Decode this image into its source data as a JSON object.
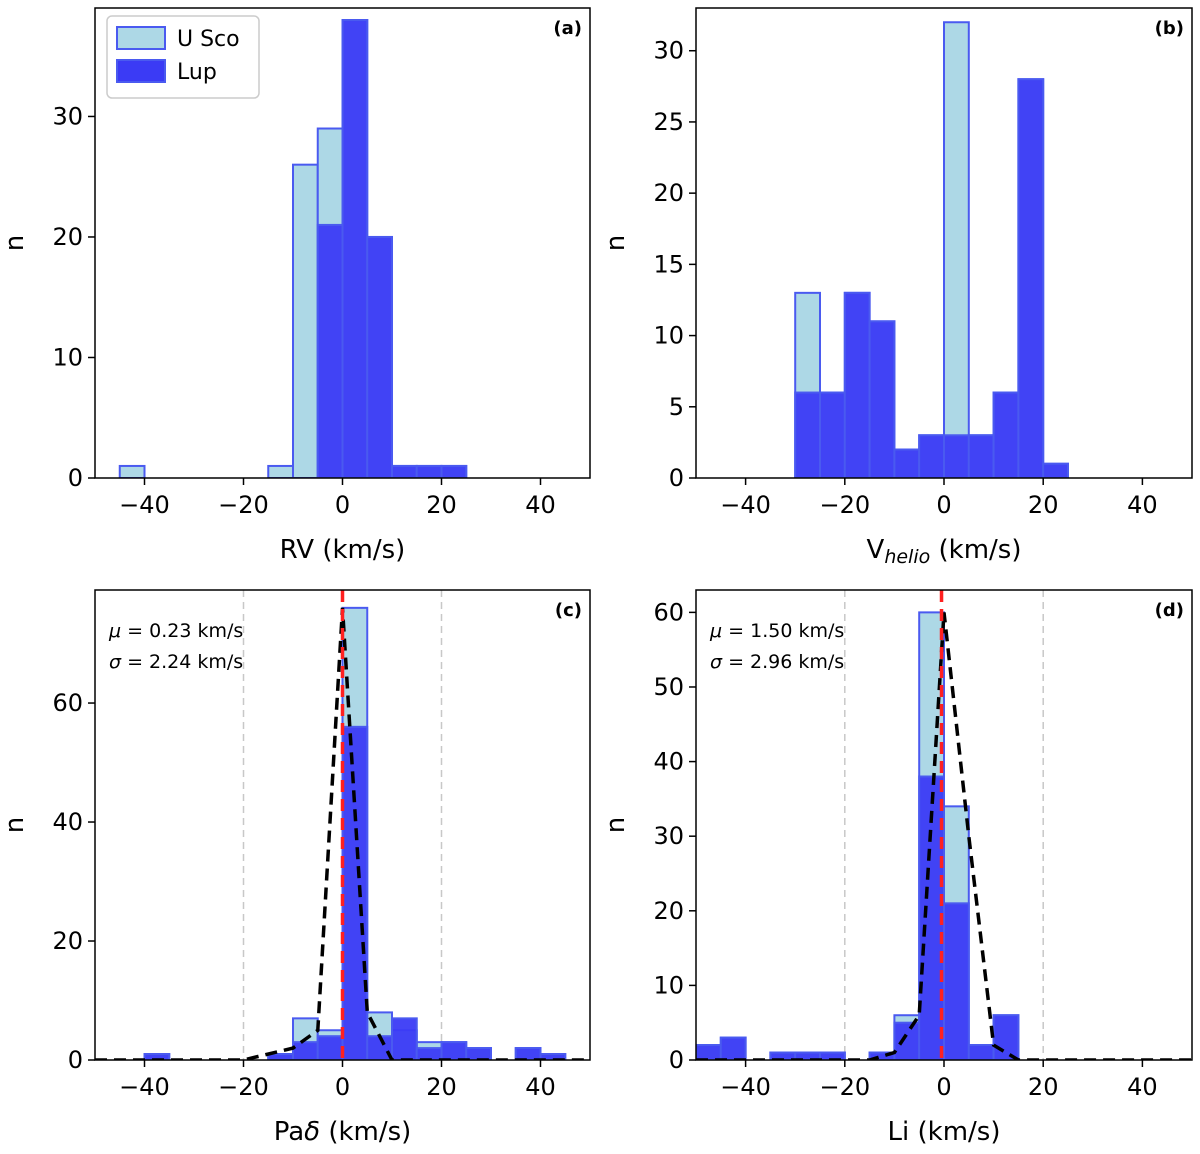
{
  "colors": {
    "usco_fill": "#add8e6",
    "lup_fill": "#3b3bf5",
    "edge": "#4a5af0",
    "fit_line": "#000000",
    "zero_line": "#ff2020",
    "grid_dash": "#c8c8c8"
  },
  "legend": {
    "usco": "U Sco",
    "lup": "Lup"
  },
  "chart_data": [
    {
      "id": "a",
      "type": "bar",
      "tag": "(a)",
      "xlabel": "RV (km/s)",
      "xlabel_sub": "",
      "ylabel": "n",
      "xlim": [
        -50,
        50
      ],
      "ylim": [
        0,
        39
      ],
      "xticks": [
        -40,
        -20,
        0,
        20,
        40
      ],
      "xtick_labels": [
        "−40",
        "−20",
        "0",
        "20",
        "40"
      ],
      "yticks": [
        0,
        10,
        20,
        30
      ],
      "ytick_labels": [
        "0",
        "10",
        "20",
        "30"
      ],
      "bin_width": 5,
      "bins": [
        -45,
        -15,
        -10,
        -5,
        0,
        5,
        10,
        15,
        20
      ],
      "usco": [
        1,
        1,
        26,
        29,
        38,
        20,
        1,
        1,
        1
      ],
      "lup": [
        0,
        0,
        0,
        21,
        38,
        20,
        1,
        1,
        1
      ],
      "legend": true
    },
    {
      "id": "b",
      "type": "bar",
      "tag": "(b)",
      "xlabel": "V",
      "xlabel_sub": "helio",
      "xlabel_tail": " (km/s)",
      "ylabel": "n",
      "xlim": [
        -50,
        50
      ],
      "ylim": [
        0,
        33
      ],
      "xticks": [
        -40,
        -20,
        0,
        20,
        40
      ],
      "xtick_labels": [
        "−40",
        "−20",
        "0",
        "20",
        "40"
      ],
      "yticks": [
        0,
        5,
        10,
        15,
        20,
        25,
        30
      ],
      "ytick_labels": [
        "0",
        "5",
        "10",
        "15",
        "20",
        "25",
        "30"
      ],
      "bin_width": 5,
      "bins": [
        -30,
        -25,
        -20,
        -15,
        -10,
        -5,
        0,
        5,
        10,
        15,
        20
      ],
      "usco": [
        13,
        6,
        13,
        11,
        2,
        3,
        32,
        3,
        6,
        28,
        1
      ],
      "lup": [
        6,
        6,
        13,
        11,
        2,
        3,
        3,
        3,
        6,
        28,
        1
      ],
      "legend": false
    },
    {
      "id": "c",
      "type": "bar",
      "tag": "(c)",
      "xlabel": "Pa",
      "xlabel_greek": "δ",
      "xlabel_tail": " (km/s)",
      "ylabel": "n",
      "xlim": [
        -50,
        50
      ],
      "ylim": [
        0,
        79
      ],
      "xticks": [
        -40,
        -20,
        0,
        20,
        40
      ],
      "xtick_labels": [
        "−40",
        "−20",
        "0",
        "20",
        "40"
      ],
      "yticks": [
        0,
        20,
        40,
        60
      ],
      "ytick_labels": [
        "0",
        "20",
        "40",
        "60"
      ],
      "bin_width": 5,
      "bins": [
        -40,
        -20,
        -15,
        -10,
        -5,
        0,
        5,
        10,
        15,
        20,
        25,
        35,
        40
      ],
      "usco": [
        1,
        0,
        1,
        7,
        5,
        76,
        8,
        5,
        3,
        3,
        2,
        2,
        1
      ],
      "lup": [
        1,
        0,
        1,
        3,
        4,
        56,
        4,
        7,
        2,
        3,
        2,
        2,
        1
      ],
      "mu_text": "= 0.23 km/s",
      "sigma_text": "= 2.24 km/s",
      "fit": {
        "x": [
          -50,
          -20,
          -10,
          -5,
          0,
          5,
          10,
          20,
          50
        ],
        "y": [
          0,
          0,
          2,
          5,
          76,
          8,
          0,
          0,
          0
        ]
      },
      "vlines": [
        -20,
        20
      ],
      "zero_line": 0,
      "legend": false
    },
    {
      "id": "d",
      "type": "bar",
      "tag": "(d)",
      "xlabel": "Li (km/s)",
      "xlabel_sub": "",
      "ylabel": "n",
      "xlim": [
        -50,
        50
      ],
      "ylim": [
        0,
        63
      ],
      "xticks": [
        -40,
        -20,
        0,
        20,
        40
      ],
      "xtick_labels": [
        "−40",
        "−20",
        "0",
        "20",
        "40"
      ],
      "yticks": [
        0,
        10,
        20,
        30,
        40,
        50,
        60
      ],
      "ytick_labels": [
        "0",
        "10",
        "20",
        "30",
        "40",
        "50",
        "60"
      ],
      "bin_width": 5,
      "bins": [
        -50,
        -45,
        -35,
        -30,
        -25,
        -15,
        -10,
        -5,
        0,
        5,
        10
      ],
      "usco": [
        2,
        3,
        1,
        1,
        1,
        1,
        6,
        60,
        34,
        2,
        6
      ],
      "lup": [
        2,
        3,
        1,
        1,
        1,
        1,
        5,
        38,
        21,
        2,
        6
      ],
      "mu_text": "= 1.50 km/s",
      "sigma_text": "= 2.96 km/s",
      "fit": {
        "x": [
          -50,
          -15,
          -10,
          -5,
          0,
          5,
          10,
          15,
          50
        ],
        "y": [
          0,
          0,
          1,
          6,
          60,
          30,
          2,
          0,
          0
        ]
      },
      "vlines": [
        -20,
        20
      ],
      "zero_line": -0.5,
      "legend": false
    }
  ]
}
